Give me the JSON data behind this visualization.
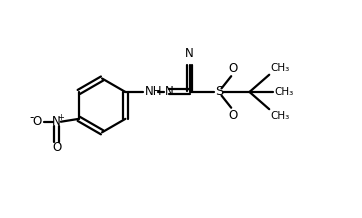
{
  "background_color": "#ffffff",
  "line_color": "#000000",
  "line_width": 1.6,
  "font_size": 8.5,
  "xlim": [
    0,
    10
  ],
  "ylim": [
    0,
    6
  ]
}
